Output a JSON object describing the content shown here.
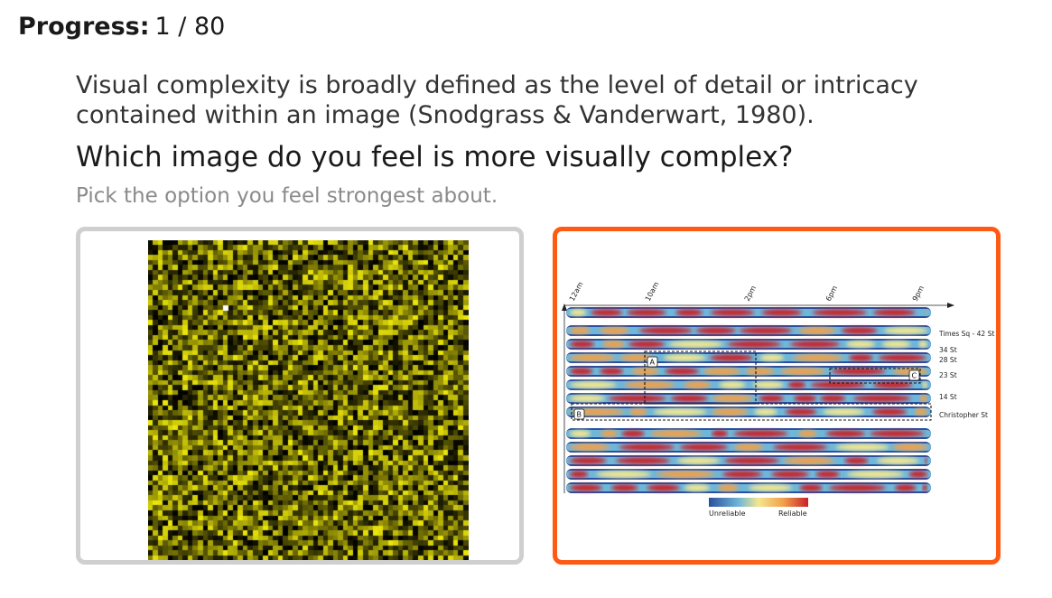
{
  "progress": {
    "label": "Progress:",
    "value": "1 / 80"
  },
  "prompt": {
    "description": "Visual complexity is broadly defined as the level of detail or intricacy contained within an image (Snodgrass & Vanderwart, 1980).",
    "question": "Which image do you feel is more visually complex?",
    "hint": "Pick the option you feel strongest about."
  },
  "options": [
    {
      "id": "a",
      "selected": false,
      "border_color": "#cfcfcf",
      "kind": "yellow-black pixel noise grid"
    },
    {
      "id": "b",
      "selected": true,
      "border_color": "#ff5a14",
      "figure": {
        "time_labels": [
          "12am",
          "10am",
          "2pm",
          "6pm",
          "9pm"
        ],
        "station_labels": [
          "Times Sq - 42 St",
          "34 St",
          "28 St",
          "23 St",
          "14 St",
          "Christopher St"
        ],
        "box_labels": [
          "A",
          "B",
          "C"
        ],
        "colorbar_labels": [
          "Unreliable",
          "Reliable"
        ],
        "colors": [
          "#2a4f9e",
          "#6fb6d8",
          "#f4e690",
          "#f2a04a",
          "#c8202a"
        ]
      }
    }
  ]
}
